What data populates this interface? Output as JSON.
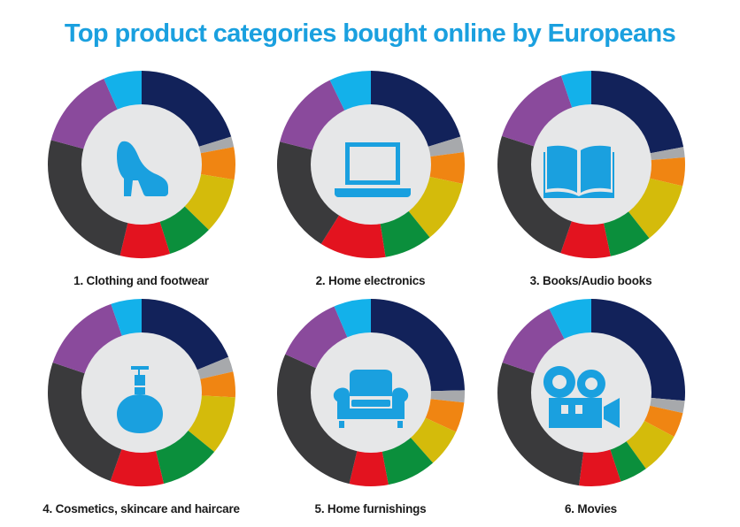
{
  "title": "Top product categories bought online by Europeans",
  "colors": {
    "title": "#1aa0df",
    "icon": "#1aa0df",
    "center": "#e6e7e8",
    "segments": [
      "#12225a",
      "#a7a9ac",
      "#f08512",
      "#d4bb0b",
      "#0b8f3c",
      "#e3131f",
      "#3a3a3c",
      "#8a4a9c",
      "#13b1ea"
    ]
  },
  "chart_data": [
    {
      "type": "pie",
      "title": "1. Clothing and footwear",
      "icon": "high-heel-shoe-icon",
      "values": [
        20.2,
        1.8,
        5.6,
        9.7,
        7.8,
        8.6,
        25.5,
        14.2,
        6.6
      ]
    },
    {
      "type": "pie",
      "title": "2. Home electronics",
      "icon": "laptop-icon",
      "values": [
        20.2,
        2.7,
        5.4,
        10.9,
        8.3,
        11.4,
        20.0,
        13.9,
        7.2
      ]
    },
    {
      "type": "pie",
      "title": "3. Books/Audio books",
      "icon": "open-book-icon",
      "values": [
        22.0,
        1.8,
        4.9,
        10.7,
        7.3,
        8.6,
        24.6,
        14.9,
        5.2
      ]
    },
    {
      "type": "pie",
      "title": "4. Cosmetics, skincare and haircare",
      "icon": "perfume-bottle-icon",
      "values": [
        18.8,
        2.6,
        4.4,
        10.1,
        10.3,
        9.2,
        24.8,
        14.5,
        5.3
      ]
    },
    {
      "type": "pie",
      "title": "5. Home furnishings",
      "icon": "armchair-icon",
      "values": [
        24.6,
        2.1,
        5.2,
        6.6,
        8.5,
        6.7,
        28.0,
        11.9,
        6.4
      ]
    },
    {
      "type": "pie",
      "title": "6. Movies",
      "icon": "movie-camera-icon",
      "values": [
        26.4,
        2.1,
        4.3,
        7.3,
        4.8,
        7.2,
        28.1,
        12.4,
        7.4
      ]
    }
  ]
}
